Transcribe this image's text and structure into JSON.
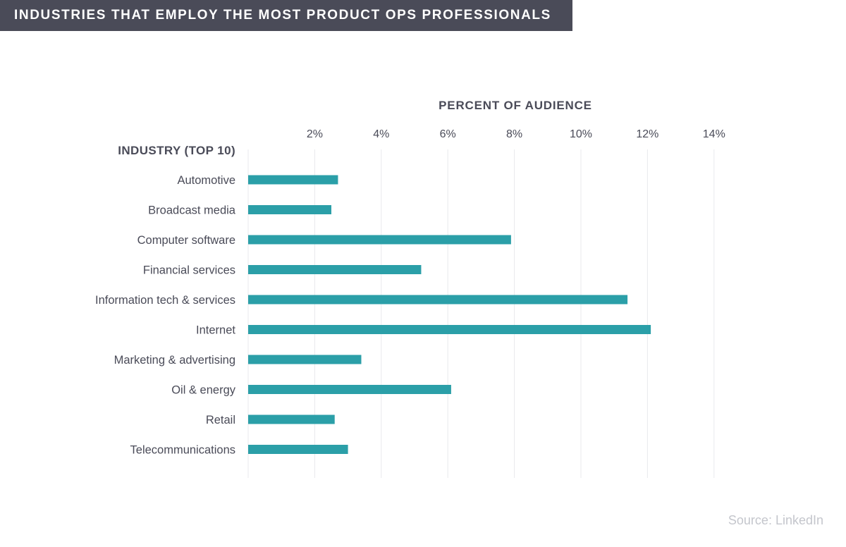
{
  "title": "INDUSTRIES THAT EMPLOY THE MOST PRODUCT OPS PROFESSIONALS",
  "source": "Source: LinkedIn",
  "colors": {
    "bar": "#2b9fa8",
    "banner": "#4a4b58",
    "text": "#4a4b58",
    "grid": "#e8e9ec",
    "source": "#c4c6cc"
  },
  "chart_data": {
    "type": "bar",
    "orientation": "horizontal",
    "xlabel": "PERCENT OF AUDIENCE",
    "ylabel": "INDUSTRY (TOP 10)",
    "xlim": [
      0,
      14
    ],
    "xticks": [
      2,
      4,
      6,
      8,
      10,
      12,
      14
    ],
    "xtick_labels": [
      "2%",
      "4%",
      "6%",
      "8%",
      "10%",
      "12%",
      "14%"
    ],
    "grid": true,
    "categories": [
      "Automotive",
      "Broadcast media",
      "Computer software",
      "Financial services",
      "Information tech & services",
      "Internet",
      "Marketing & advertising",
      "Oil & energy",
      "Retail",
      "Telecommunications"
    ],
    "values": [
      2.7,
      2.5,
      7.9,
      5.2,
      11.4,
      12.1,
      3.4,
      6.1,
      2.6,
      3.0
    ]
  }
}
